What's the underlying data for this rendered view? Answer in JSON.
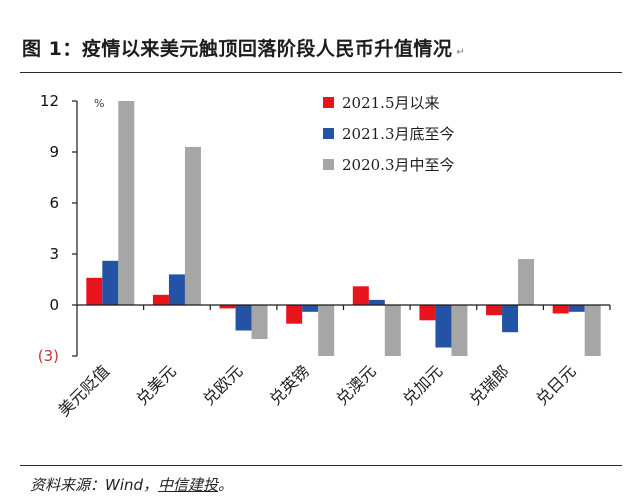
{
  "title": "图 1：疫情以来美元触顶回落阶段人民币升值情况",
  "source_prefix": "资料来源：Wind，",
  "source_org": "中信建投",
  "chart_data": {
    "type": "bar",
    "unit": "%",
    "categories": [
      "美元贬值",
      "兑美元",
      "兑欧元",
      "兑英镑",
      "兑澳元",
      "兑加元",
      "兑瑞郎",
      "兑日元"
    ],
    "series": [
      {
        "name": "2021.5月以来",
        "color": "#e8141c",
        "values": [
          1.6,
          0.6,
          -0.2,
          -1.1,
          1.1,
          -0.9,
          -0.6,
          -0.5
        ]
      },
      {
        "name": "2021.3月底至今",
        "color": "#2452a4",
        "values": [
          2.6,
          1.8,
          -1.5,
          -0.4,
          0.3,
          -2.5,
          -1.6,
          -0.4
        ]
      },
      {
        "name": "2020.3月中至今",
        "color": "#a6a6a6",
        "values": [
          12.0,
          9.3,
          -2.0,
          -3.0,
          -3.0,
          -3.0,
          2.7,
          -3.0
        ]
      }
    ],
    "ylim": [
      -3,
      12
    ],
    "yticks": [
      {
        "value": 12,
        "label": "12"
      },
      {
        "value": 9,
        "label": "9"
      },
      {
        "value": 6,
        "label": "6"
      },
      {
        "value": 3,
        "label": "3"
      },
      {
        "value": 0,
        "label": "0"
      },
      {
        "value": -3,
        "label": "(3)"
      }
    ],
    "legend_position": "top-right",
    "grid": false
  }
}
